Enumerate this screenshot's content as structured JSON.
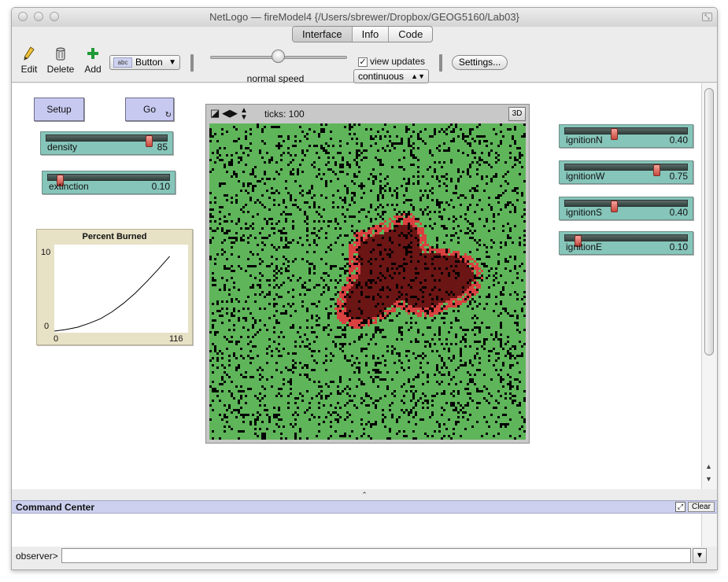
{
  "window": {
    "title": "NetLogo — fireModel4 {/Users/sbrewer/Dropbox/GEOG5160/Lab03}",
    "resize_icon": "⤡"
  },
  "tabs": [
    {
      "label": "Interface"
    },
    {
      "label": "Info"
    },
    {
      "label": "Code"
    }
  ],
  "toolbar": {
    "edit": {
      "label": "Edit",
      "icon": "pencil-icon"
    },
    "delete": {
      "label": "Delete",
      "icon": "trash-icon"
    },
    "add": {
      "label": "Add",
      "icon": "plus-icon"
    },
    "widget_type": "Button",
    "widget_type_icon_text": "abc",
    "speed_label": "normal speed",
    "speed_level": 0.5,
    "view_updates_label": "view updates",
    "view_updates_checked": true,
    "update_mode": "continuous",
    "settings_label": "Settings..."
  },
  "buttons": {
    "setup": "Setup",
    "go": "Go"
  },
  "sliders": [
    {
      "name": "density",
      "value": "85",
      "fraction": 0.85
    },
    {
      "name": "extinction",
      "value": "0.10",
      "fraction": 0.1
    },
    {
      "name": "ignitionN",
      "value": "0.40",
      "fraction": 0.4
    },
    {
      "name": "ignitionW",
      "value": "0.75",
      "fraction": 0.75
    },
    {
      "name": "ignitionS",
      "value": "0.40",
      "fraction": 0.4
    },
    {
      "name": "ignitionE",
      "value": "0.10",
      "fraction": 0.1
    }
  ],
  "plot": {
    "title": "Percent Burned",
    "y_max_label": "10",
    "y_min_label": "0",
    "x_min_label": "0",
    "x_max_label": "116"
  },
  "chart_data": {
    "type": "line",
    "title": "Percent Burned",
    "xlim": [
      0,
      116
    ],
    "ylim": [
      0,
      10
    ],
    "x": [
      0,
      10,
      20,
      30,
      40,
      50,
      60,
      70,
      80,
      90,
      100
    ],
    "series": [
      {
        "values": [
          0,
          0.2,
          0.5,
          1.0,
          1.6,
          2.5,
          3.6,
          4.9,
          6.4,
          8.0,
          9.7
        ]
      }
    ]
  },
  "view": {
    "ticks_label": "ticks: 100",
    "three_d_label": "3D",
    "colors": {
      "tree": "#5fb55a",
      "empty": "#000000",
      "burned": "#6b1515",
      "burning": "#d94040"
    }
  },
  "command_center": {
    "title": "Command Center",
    "clear_label": "Clear",
    "prompt": "observer>",
    "splitter_icon": "⌃",
    "expand_icon": "⤢"
  }
}
